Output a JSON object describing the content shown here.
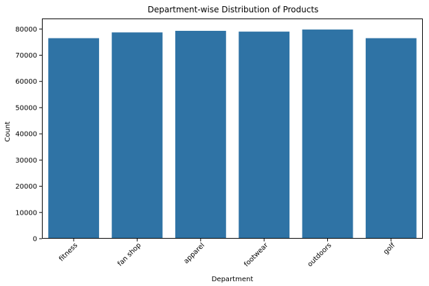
{
  "chart_data": {
    "type": "bar",
    "title": "Department-wise Distribution of Products",
    "xlabel": "Department",
    "ylabel": "Count",
    "categories": [
      "fitness",
      "fan shop",
      "apparel",
      "footwear",
      "outdoors",
      "golf"
    ],
    "values": [
      76500,
      78700,
      79300,
      79000,
      79800,
      76500
    ],
    "ylim": [
      0,
      84000
    ],
    "yticks": [
      0,
      10000,
      20000,
      30000,
      40000,
      50000,
      60000,
      70000,
      80000
    ],
    "bar_color": "#2f73a5",
    "grid": false,
    "legend": "none"
  }
}
